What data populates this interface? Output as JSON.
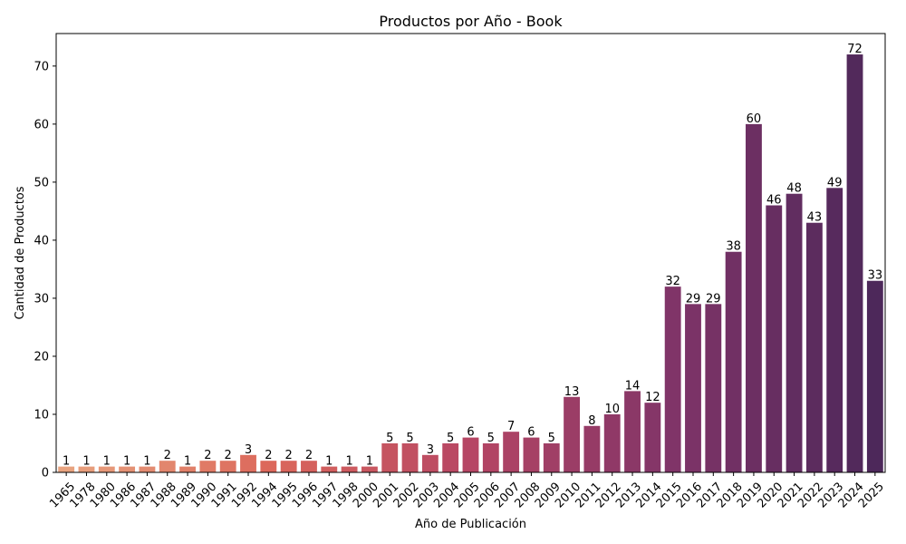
{
  "chart_data": {
    "type": "bar",
    "title": "Productos por Año - Book",
    "xlabel": "Año de Publicación",
    "ylabel": "Cantidad de Productos",
    "ylim": [
      0,
      75.6
    ],
    "yticks": [
      0,
      10,
      20,
      30,
      40,
      50,
      60,
      70
    ],
    "grid": false,
    "palette": "flare",
    "categories": [
      "1965",
      "1978",
      "1980",
      "1986",
      "1987",
      "1988",
      "1989",
      "1990",
      "1991",
      "1992",
      "1994",
      "1995",
      "1996",
      "1997",
      "1998",
      "2000",
      "2001",
      "2002",
      "2003",
      "2004",
      "2005",
      "2006",
      "2007",
      "2008",
      "2009",
      "2010",
      "2011",
      "2012",
      "2013",
      "2014",
      "2015",
      "2016",
      "2017",
      "2018",
      "2019",
      "2020",
      "2021",
      "2022",
      "2023",
      "2024",
      "2025"
    ],
    "values": [
      1,
      1,
      1,
      1,
      1,
      2,
      1,
      2,
      2,
      3,
      2,
      2,
      2,
      1,
      1,
      1,
      5,
      5,
      3,
      5,
      6,
      5,
      7,
      6,
      5,
      13,
      8,
      10,
      14,
      12,
      32,
      29,
      29,
      38,
      60,
      46,
      48,
      43,
      49,
      72,
      33
    ]
  }
}
